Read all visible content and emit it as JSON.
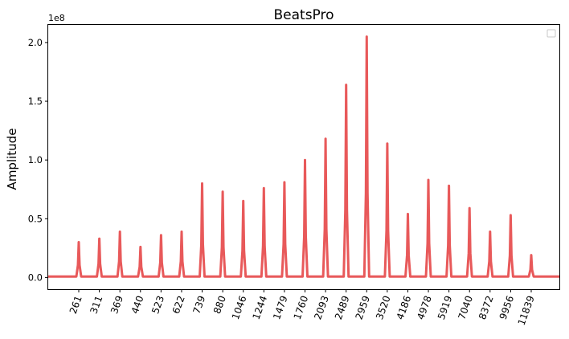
{
  "chart_data": {
    "type": "line",
    "title": "BeatsPro",
    "ylabel": "Amplitude",
    "xlabel": "",
    "y_offset_label": "1e8",
    "y_scale": 100000000,
    "ylim": [
      -0.1,
      2.15
    ],
    "yticks": [
      0.0,
      0.5,
      1.0,
      1.5,
      2.0
    ],
    "ytick_labels": [
      "0.0",
      "0.5",
      "1.0",
      "1.5",
      "2.0"
    ],
    "xticks": [
      "261",
      "311",
      "369",
      "440",
      "523",
      "622",
      "739",
      "880",
      "1046",
      "1244",
      "1479",
      "1760",
      "2093",
      "2489",
      "2959",
      "3520",
      "4186",
      "4978",
      "5919",
      "7040",
      "8372",
      "9956",
      "11839"
    ],
    "series": [
      {
        "color": "#e8595a",
        "x": [
          "261",
          "311",
          "369",
          "440",
          "523",
          "622",
          "739",
          "880",
          "1046",
          "1244",
          "1479",
          "1760",
          "2093",
          "2489",
          "2959",
          "3520",
          "4186",
          "4978",
          "5919",
          "7040",
          "8372",
          "9956",
          "11839"
        ],
        "values": [
          0.3,
          0.33,
          0.39,
          0.26,
          0.36,
          0.39,
          0.8,
          0.73,
          0.65,
          0.76,
          0.81,
          1.0,
          1.18,
          1.64,
          2.05,
          1.14,
          0.54,
          0.83,
          0.78,
          0.59,
          0.39,
          0.53,
          0.19
        ]
      }
    ],
    "grid": false,
    "legend": "top-right"
  }
}
